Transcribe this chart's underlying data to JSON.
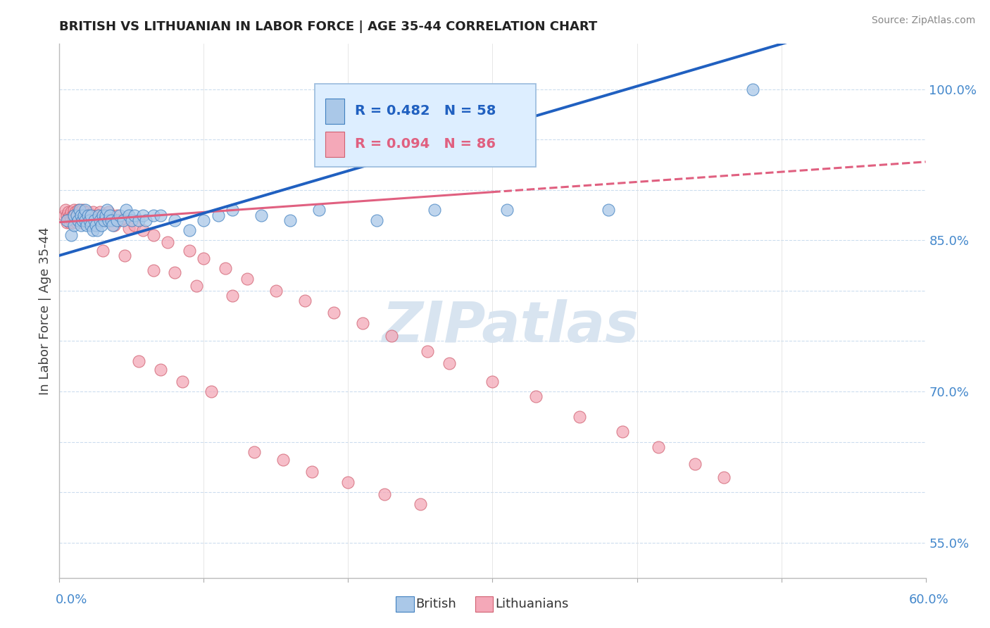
{
  "title": "BRITISH VS LITHUANIAN IN LABOR FORCE | AGE 35-44 CORRELATION CHART",
  "source": "Source: ZipAtlas.com",
  "ylabel": "In Labor Force | Age 35-44",
  "xlim": [
    0.0,
    0.6
  ],
  "ylim": [
    0.515,
    1.045
  ],
  "yticks": [
    0.55,
    0.6,
    0.65,
    0.7,
    0.75,
    0.8,
    0.85,
    0.9,
    0.95,
    1.0
  ],
  "ytick_labels": [
    "55.0%",
    "",
    "",
    "70.0%",
    "",
    "",
    "85.0%",
    "",
    "",
    "100.0%"
  ],
  "british_color": "#aac8e8",
  "british_edge_color": "#4080c0",
  "lithuanian_color": "#f4a8b8",
  "lithuanian_edge_color": "#d06070",
  "british_line_color": "#2060c0",
  "lithuanian_line_color": "#e06080",
  "legend_box_color": "#ddeeff",
  "legend_box_edge": "#99bbdd",
  "watermark_color": "#d8e4f0",
  "british_points_x": [
    0.005,
    0.008,
    0.01,
    0.01,
    0.012,
    0.013,
    0.014,
    0.015,
    0.015,
    0.016,
    0.017,
    0.018,
    0.018,
    0.019,
    0.02,
    0.021,
    0.022,
    0.022,
    0.023,
    0.024,
    0.025,
    0.026,
    0.027,
    0.028,
    0.029,
    0.03,
    0.031,
    0.032,
    0.033,
    0.034,
    0.035,
    0.036,
    0.037,
    0.04,
    0.042,
    0.044,
    0.046,
    0.048,
    0.05,
    0.052,
    0.055,
    0.058,
    0.06,
    0.065,
    0.07,
    0.08,
    0.09,
    0.1,
    0.11,
    0.12,
    0.14,
    0.16,
    0.18,
    0.22,
    0.26,
    0.31,
    0.38,
    0.48
  ],
  "british_points_y": [
    0.87,
    0.855,
    0.875,
    0.865,
    0.875,
    0.87,
    0.88,
    0.865,
    0.875,
    0.87,
    0.875,
    0.87,
    0.88,
    0.865,
    0.875,
    0.87,
    0.875,
    0.865,
    0.86,
    0.87,
    0.865,
    0.86,
    0.875,
    0.87,
    0.865,
    0.875,
    0.87,
    0.875,
    0.88,
    0.87,
    0.875,
    0.87,
    0.865,
    0.87,
    0.875,
    0.87,
    0.88,
    0.875,
    0.87,
    0.875,
    0.87,
    0.875,
    0.87,
    0.875,
    0.875,
    0.87,
    0.86,
    0.87,
    0.875,
    0.88,
    0.875,
    0.87,
    0.88,
    0.87,
    0.88,
    0.88,
    0.88,
    1.0
  ],
  "lithuanian_points_x": [
    0.003,
    0.004,
    0.005,
    0.005,
    0.006,
    0.006,
    0.007,
    0.007,
    0.008,
    0.008,
    0.009,
    0.009,
    0.01,
    0.01,
    0.01,
    0.011,
    0.011,
    0.012,
    0.012,
    0.013,
    0.013,
    0.014,
    0.014,
    0.015,
    0.015,
    0.016,
    0.017,
    0.018,
    0.019,
    0.02,
    0.021,
    0.022,
    0.023,
    0.024,
    0.025,
    0.026,
    0.027,
    0.028,
    0.029,
    0.03,
    0.032,
    0.034,
    0.036,
    0.038,
    0.04,
    0.042,
    0.045,
    0.048,
    0.052,
    0.058,
    0.065,
    0.075,
    0.09,
    0.1,
    0.115,
    0.13,
    0.15,
    0.17,
    0.19,
    0.21,
    0.23,
    0.255,
    0.27,
    0.3,
    0.33,
    0.36,
    0.39,
    0.415,
    0.44,
    0.46,
    0.03,
    0.045,
    0.065,
    0.08,
    0.095,
    0.12,
    0.055,
    0.07,
    0.085,
    0.105,
    0.135,
    0.155,
    0.175,
    0.2,
    0.225,
    0.25
  ],
  "lithuanian_points_y": [
    0.875,
    0.88,
    0.875,
    0.868,
    0.878,
    0.872,
    0.875,
    0.868,
    0.878,
    0.872,
    0.875,
    0.868,
    0.88,
    0.872,
    0.875,
    0.878,
    0.872,
    0.875,
    0.868,
    0.88,
    0.872,
    0.878,
    0.875,
    0.868,
    0.872,
    0.88,
    0.878,
    0.875,
    0.872,
    0.878,
    0.875,
    0.87,
    0.878,
    0.872,
    0.875,
    0.868,
    0.875,
    0.878,
    0.872,
    0.875,
    0.87,
    0.878,
    0.872,
    0.865,
    0.875,
    0.87,
    0.872,
    0.862,
    0.865,
    0.86,
    0.855,
    0.848,
    0.84,
    0.832,
    0.822,
    0.812,
    0.8,
    0.79,
    0.778,
    0.768,
    0.755,
    0.74,
    0.728,
    0.71,
    0.695,
    0.675,
    0.66,
    0.645,
    0.628,
    0.615,
    0.84,
    0.835,
    0.82,
    0.818,
    0.805,
    0.795,
    0.73,
    0.722,
    0.71,
    0.7,
    0.64,
    0.632,
    0.62,
    0.61,
    0.598,
    0.588
  ]
}
